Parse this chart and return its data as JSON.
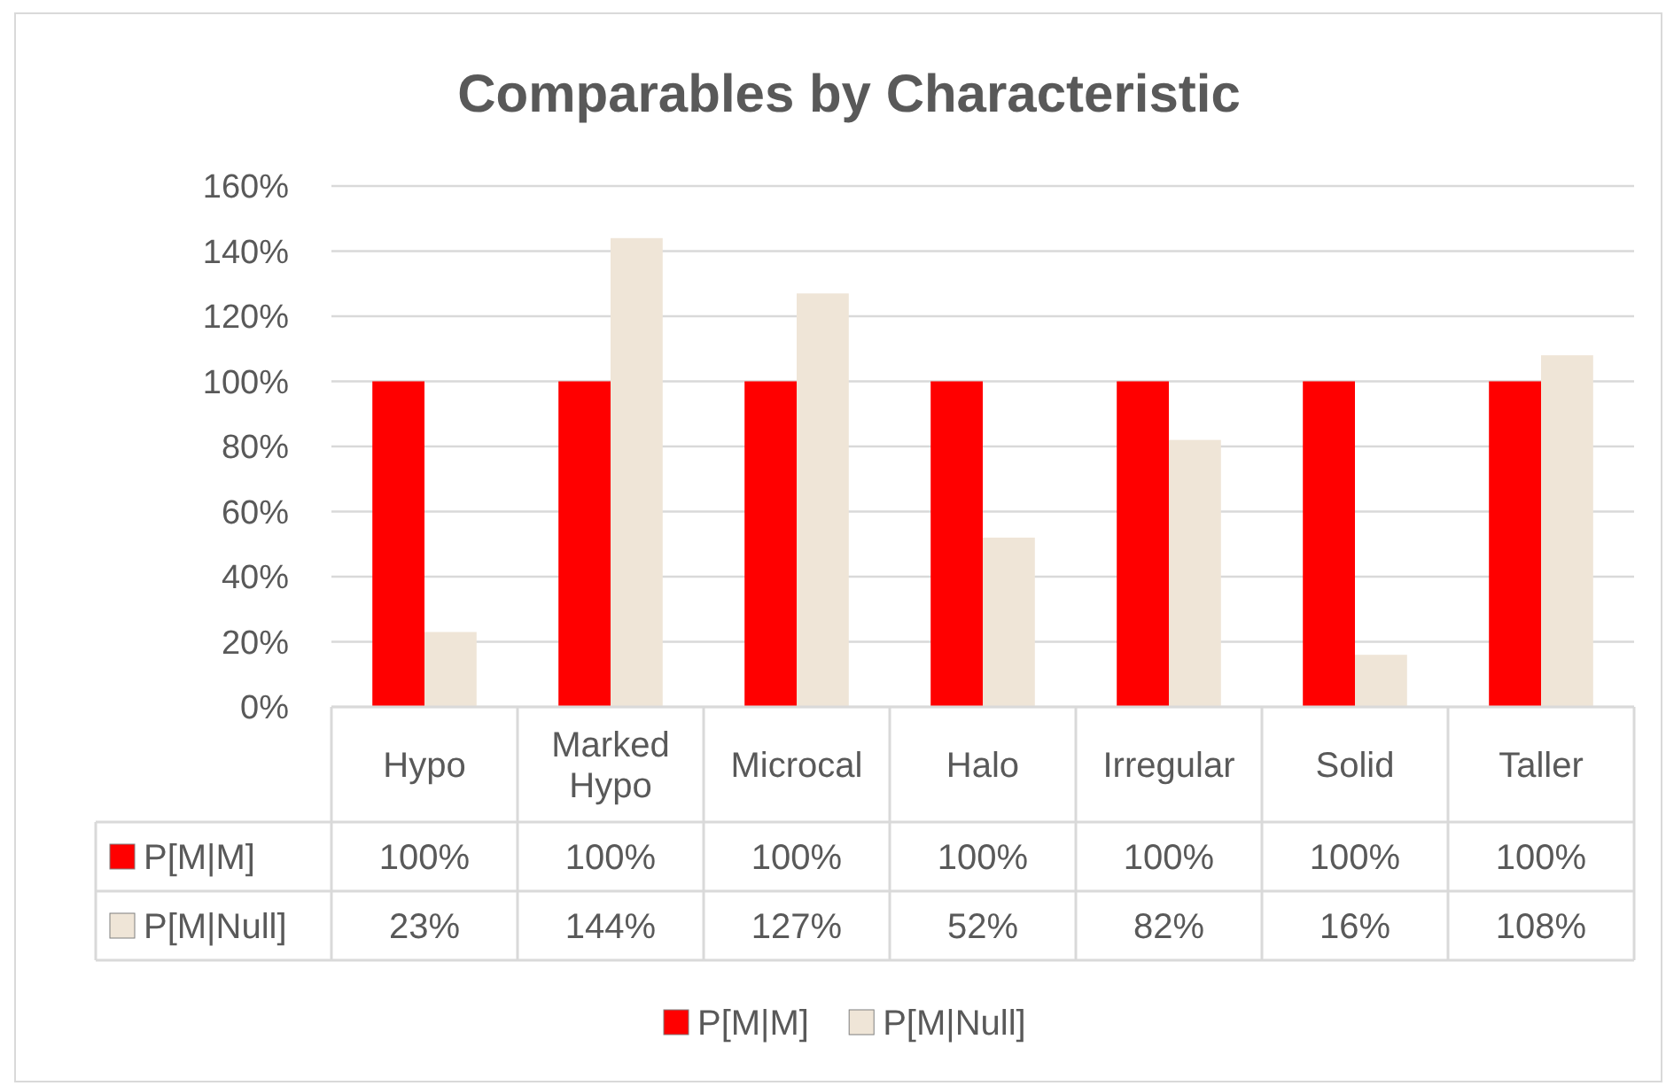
{
  "chart_data": {
    "type": "bar",
    "title": "Comparables by Characteristic",
    "categories": [
      "Hypo",
      "Marked Hypo",
      "Microcal",
      "Halo",
      "Irregular",
      "Solid",
      "Taller"
    ],
    "series": [
      {
        "name": "P[M|M]",
        "color": "#ff0000",
        "values": [
          100,
          100,
          100,
          100,
          100,
          100,
          100
        ],
        "value_labels": [
          "100%",
          "100%",
          "100%",
          "100%",
          "100%",
          "100%",
          "100%"
        ]
      },
      {
        "name": "P[M|Null]",
        "color": "#efe5d7",
        "values": [
          23,
          144,
          127,
          52,
          82,
          16,
          108
        ],
        "value_labels": [
          "23%",
          "144%",
          "127%",
          "52%",
          "82%",
          "16%",
          "108%"
        ]
      }
    ],
    "ylim": [
      0,
      160
    ],
    "yticks": [
      {
        "value": 0,
        "label": "0%"
      },
      {
        "value": 20,
        "label": "20%"
      },
      {
        "value": 40,
        "label": "40%"
      },
      {
        "value": 60,
        "label": "60%"
      },
      {
        "value": 80,
        "label": "80%"
      },
      {
        "value": 100,
        "label": "100%"
      },
      {
        "value": 120,
        "label": "120%"
      },
      {
        "value": 140,
        "label": "140%"
      },
      {
        "value": 160,
        "label": "160%"
      }
    ],
    "grid": "y",
    "legend": "bottom"
  }
}
